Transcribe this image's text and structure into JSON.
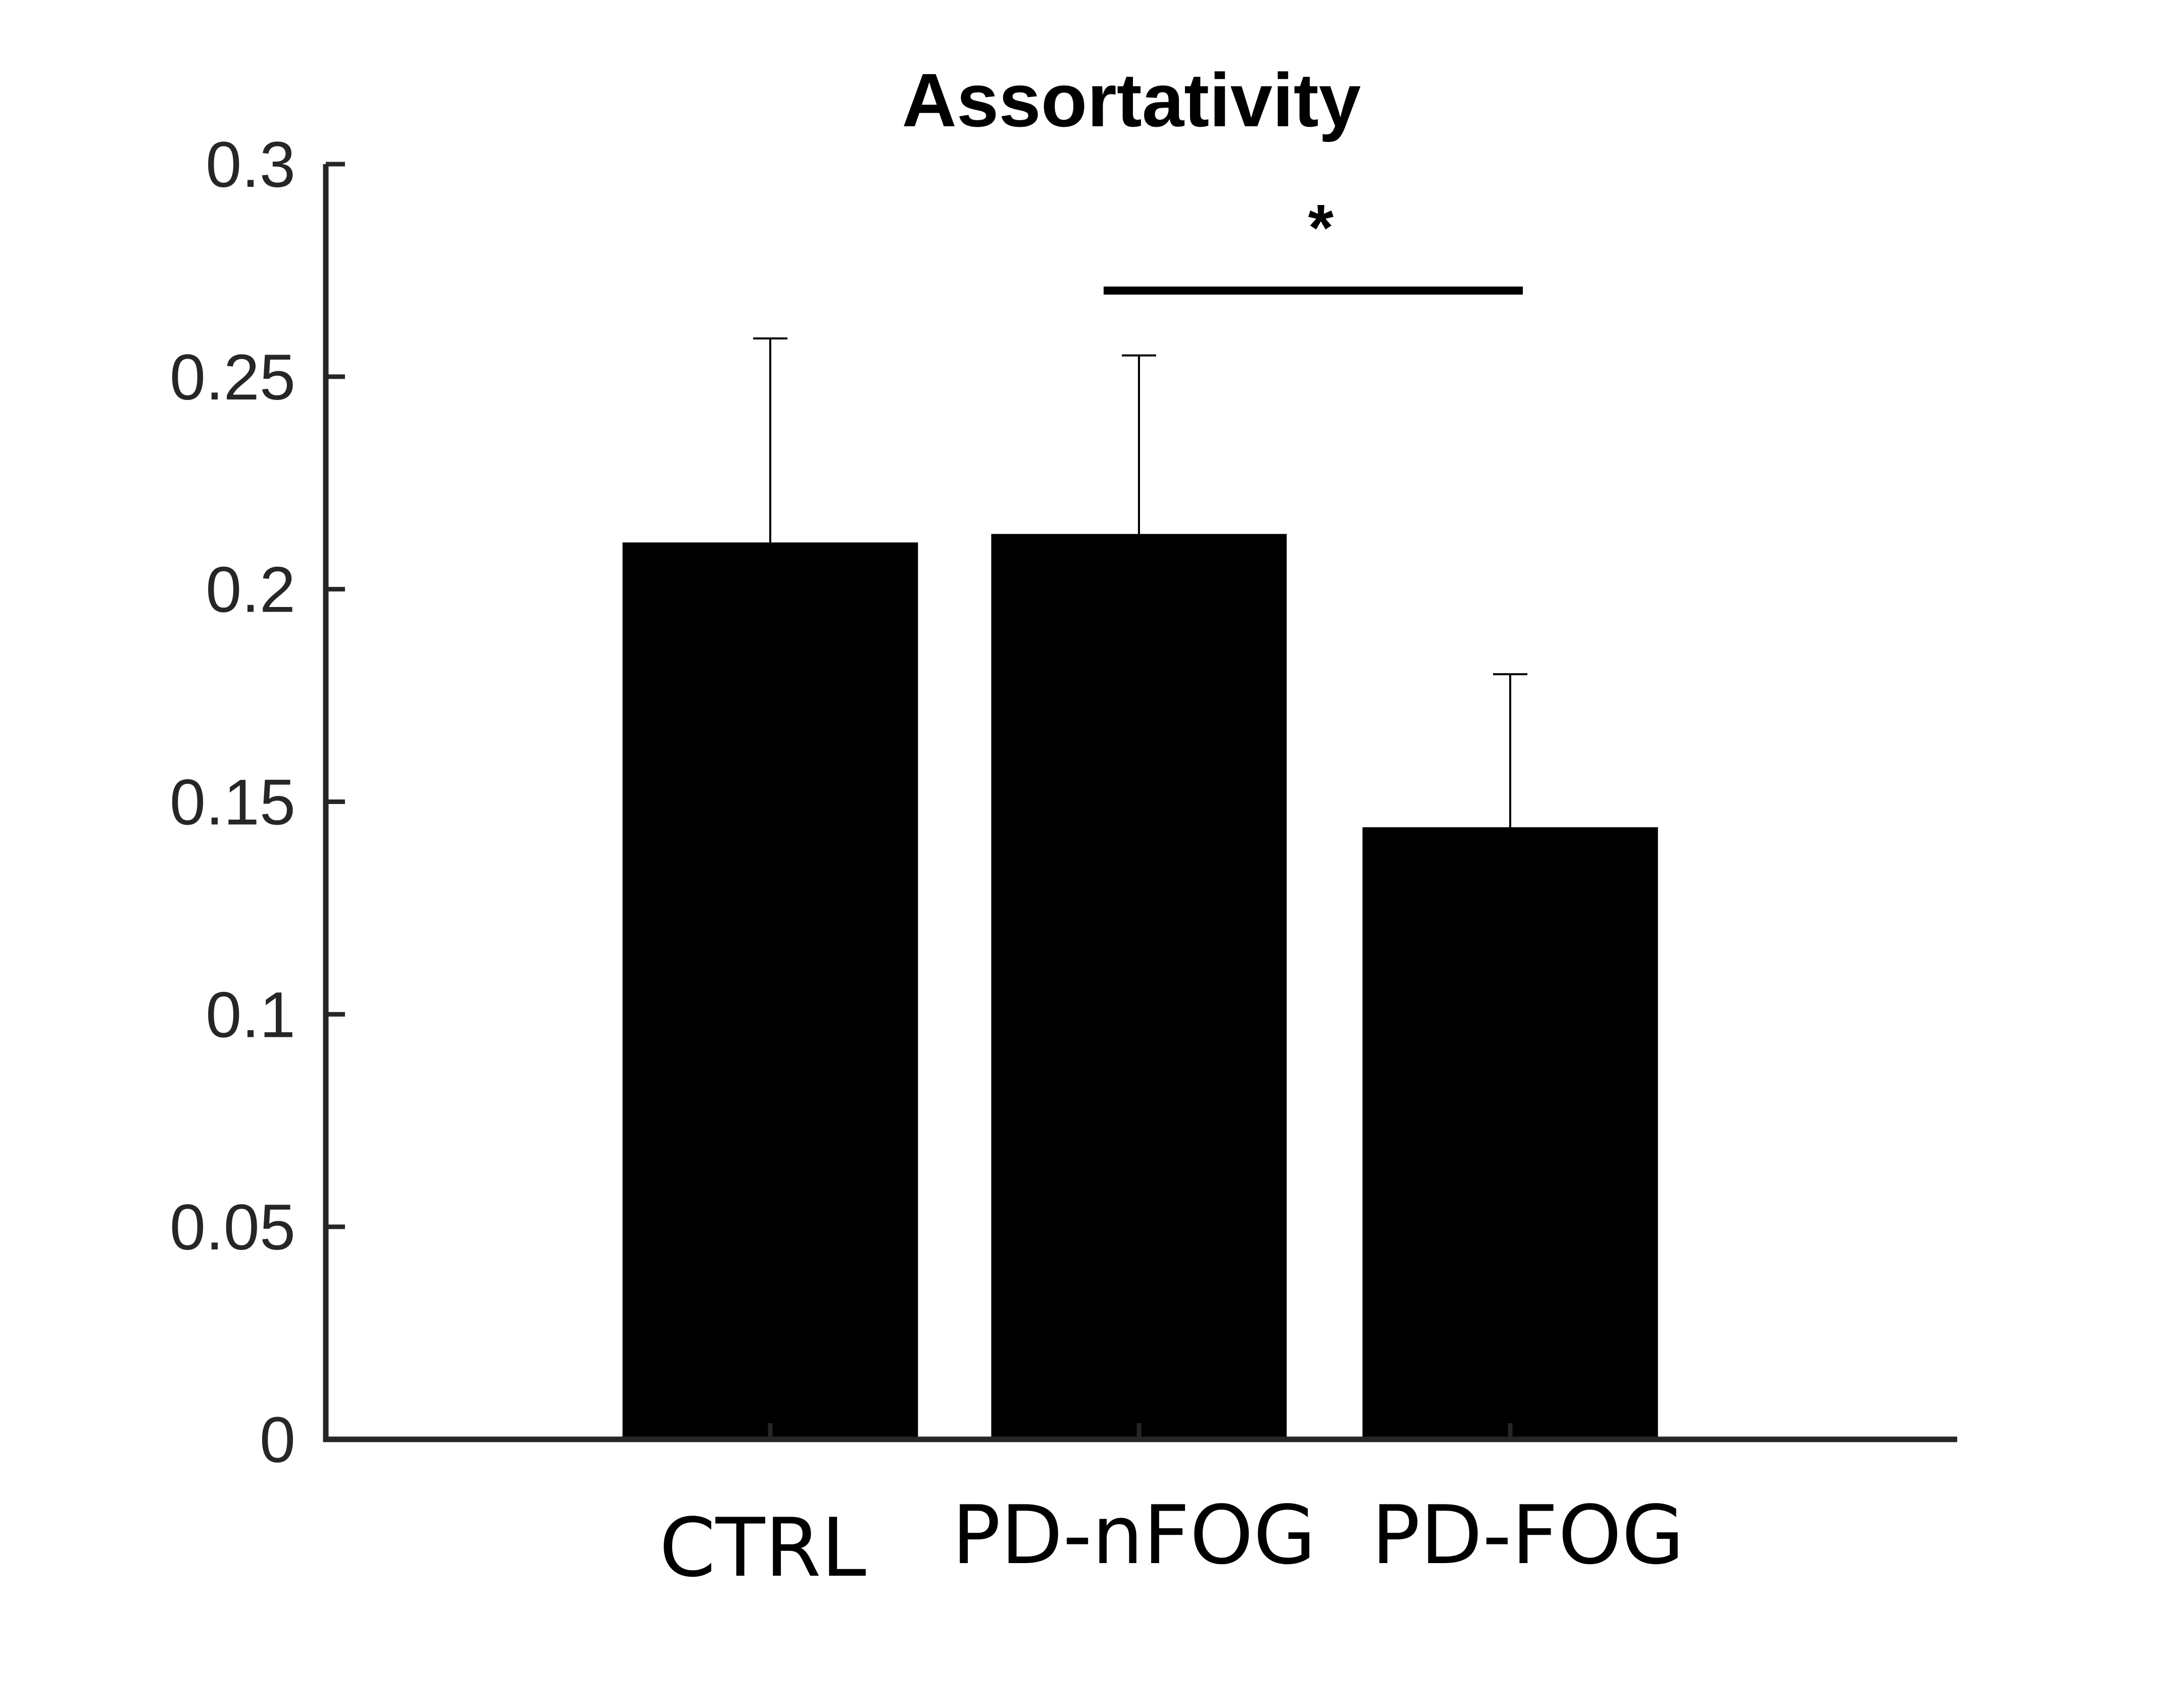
{
  "chart_data": {
    "type": "bar",
    "title": "Assortativity",
    "xlabel": "",
    "ylabel": "",
    "categories": [
      "CTRL",
      "PD-nFOG",
      "PD-FOG"
    ],
    "values": [
      0.211,
      0.213,
      0.144
    ],
    "error_upper": [
      0.259,
      0.255,
      0.18
    ],
    "ylim": [
      0,
      0.3
    ],
    "yticks": [
      "0",
      "0.05",
      "0.1",
      "0.15",
      "0.2",
      "0.25",
      "0.3"
    ],
    "ytick_values": [
      0,
      0.05,
      0.1,
      0.15,
      0.2,
      0.25,
      0.3
    ],
    "bar_color": "#000000",
    "grid": false,
    "significance": [
      {
        "from": "PD-nFOG",
        "to": "PD-FOG",
        "label": "*",
        "y": 0.275
      }
    ]
  }
}
